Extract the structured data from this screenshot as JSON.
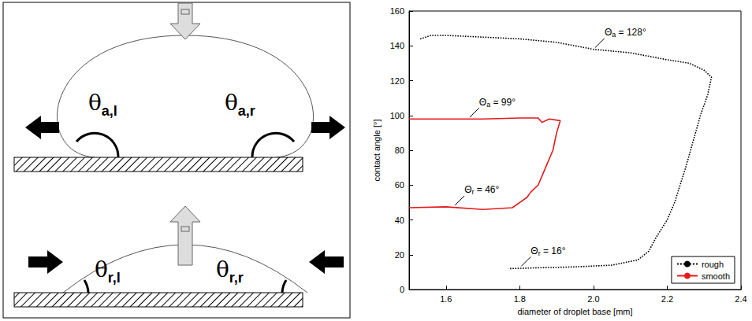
{
  "diagram": {
    "advancing": {
      "labels": [
        "θa,l",
        "θa,r"
      ]
    },
    "receding": {
      "labels": [
        "θr,l",
        "θr,r"
      ]
    }
  },
  "chart_data": {
    "type": "line",
    "x_label": "diameter of droplet base [mm]",
    "y_label": "contact angle [°]",
    "xlim": [
      1.5,
      2.4
    ],
    "xticks": [
      1.6,
      1.8,
      {
        "value": 2,
        "label": "2.0"
      },
      2.2,
      2.4
    ],
    "ylim": [
      0,
      160
    ],
    "yticks": [
      0,
      20,
      40,
      60,
      80,
      100,
      120,
      140,
      160
    ],
    "grid": false,
    "legend": "lower right",
    "series": [
      {
        "name": "rough",
        "color": "#000000",
        "line_style": "dotted",
        "x": [
          1.53,
          1.56,
          1.6,
          1.7,
          1.8,
          1.9,
          2.0,
          2.1,
          2.2,
          2.26,
          2.3,
          2.32,
          2.31,
          2.29,
          2.27,
          2.25,
          2.22,
          2.2,
          2.17,
          2.15,
          2.12,
          2.05,
          1.95,
          1.85,
          1.77
        ],
        "values": [
          144,
          146,
          146,
          145,
          144,
          142,
          138,
          136,
          132,
          130,
          126,
          122,
          112,
          100,
          85,
          70,
          50,
          40,
          30,
          22,
          17,
          14,
          13,
          12.5,
          12
        ]
      },
      {
        "name": "smooth",
        "color": "#e41a1c",
        "line_style": "solid",
        "x": [
          1.5,
          1.6,
          1.7,
          1.8,
          1.85,
          1.86,
          1.88,
          1.91,
          1.9,
          1.89,
          1.87,
          1.85,
          1.83,
          1.82,
          1.78,
          1.7,
          1.6,
          1.5
        ],
        "values": [
          98,
          98,
          98,
          98.5,
          98.5,
          96,
          98,
          97,
          90,
          80,
          70,
          60,
          56,
          53,
          47,
          46,
          47.5,
          47
        ]
      }
    ],
    "annotations": [
      {
        "text": "Θa = 128°",
        "x": 2.0,
        "y": 138
      },
      {
        "text": "Θa = 99°",
        "x": 1.66,
        "y": 98
      },
      {
        "text": "Θr = 46°",
        "x": 1.62,
        "y": 47.5
      },
      {
        "text": "Θr = 16°",
        "x": 1.8,
        "y": 12.5
      }
    ]
  }
}
